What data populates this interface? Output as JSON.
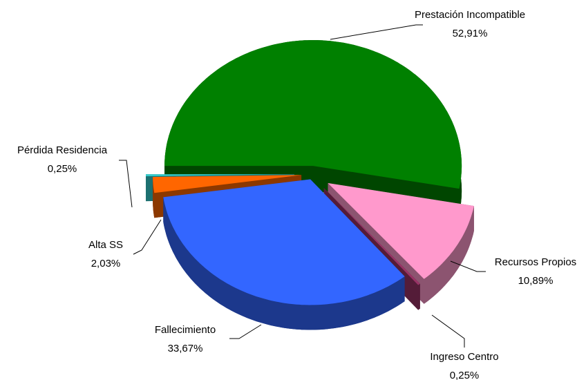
{
  "chart_data": {
    "type": "pie3d",
    "categories": [
      "Prestación Incompatible",
      "Recursos Propios",
      "Ingreso Centro",
      "Fallecimiento",
      "Alta SS",
      "Pérdida Residencia"
    ],
    "values": [
      52.91,
      10.89,
      0.25,
      33.67,
      2.03,
      0.25
    ],
    "value_labels": [
      "52,91%",
      "10,89%",
      "0,25%",
      "33,67%",
      "2,03%",
      "0,25%"
    ],
    "colors": [
      "#008000",
      "#ff99cc",
      "#993366",
      "#3366ff",
      "#ff6600",
      "#33cccc"
    ]
  }
}
